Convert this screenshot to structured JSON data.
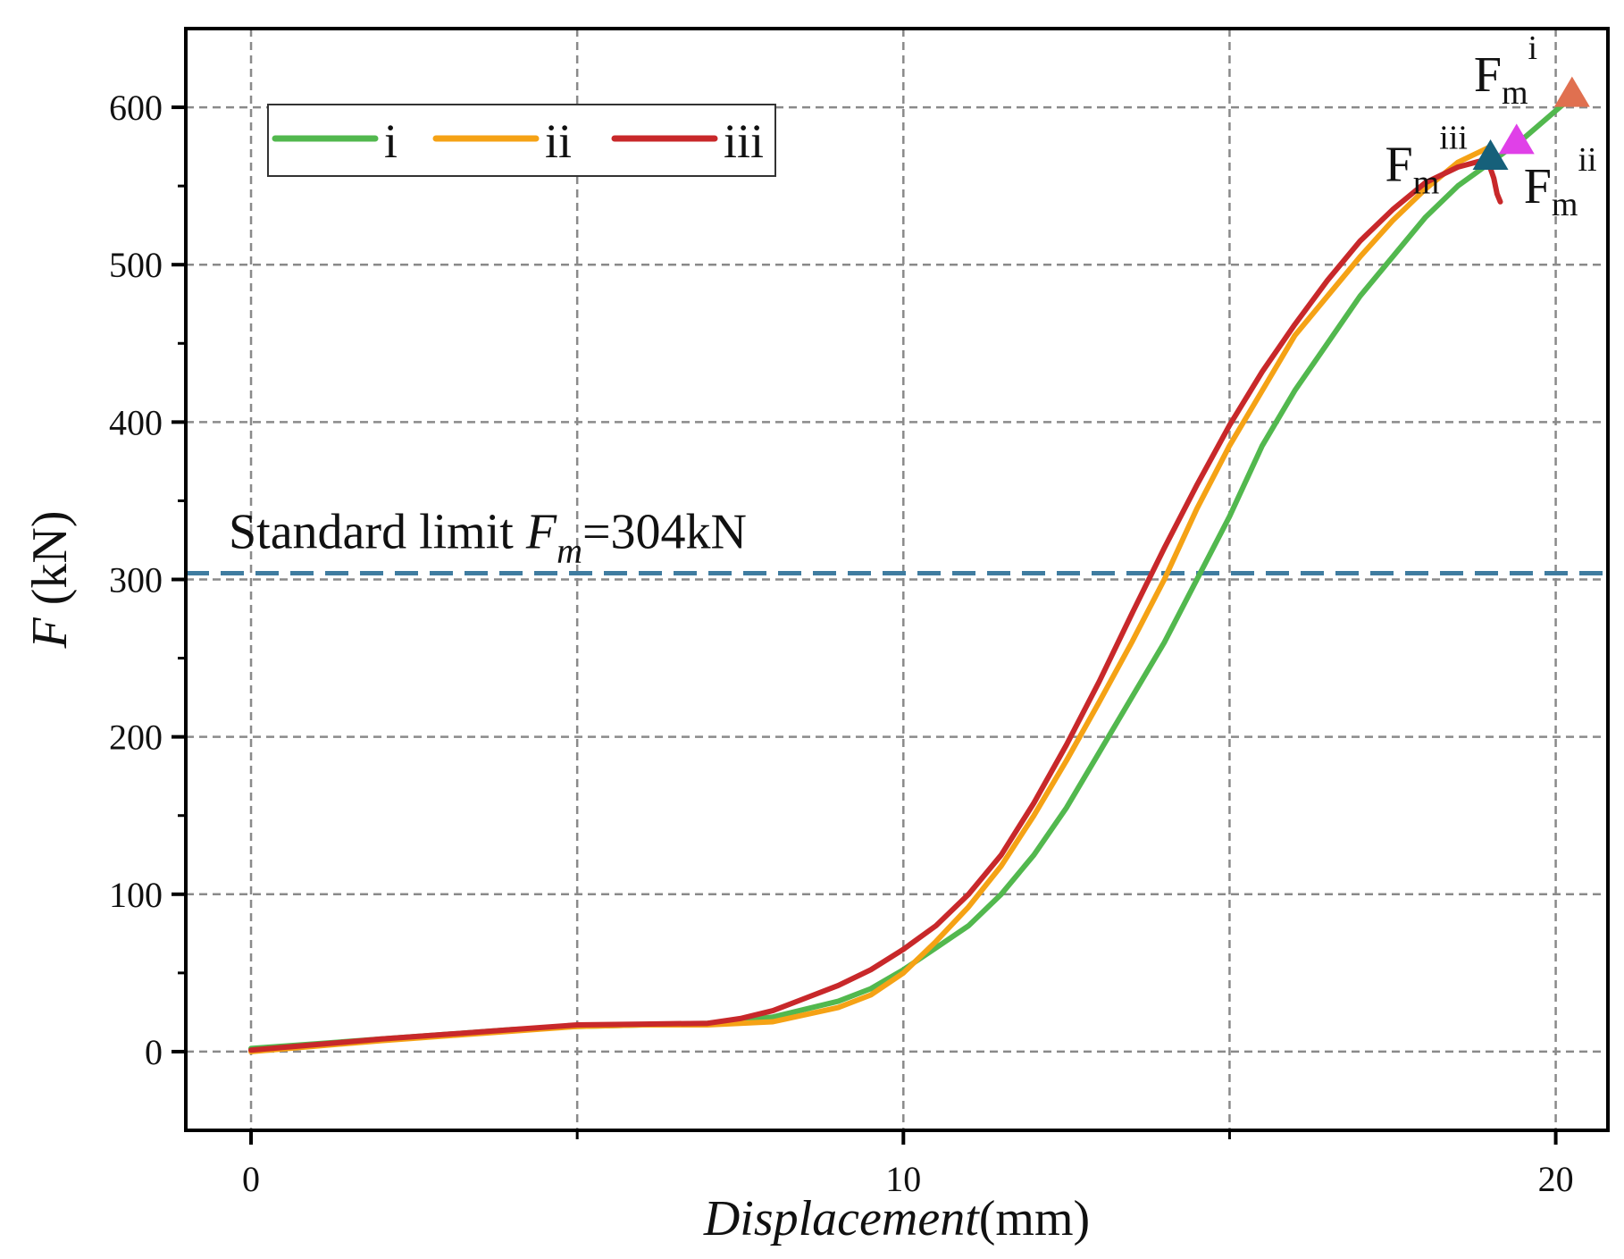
{
  "chart_data": {
    "type": "line",
    "xlabel_italic": "Displacement",
    "xlabel_unit": "(mm)",
    "ylabel_italic": "F",
    "ylabel_unit": " (kN)",
    "xlim": [
      -1,
      20.8
    ],
    "ylim": [
      -50,
      650
    ],
    "xticks": [
      0,
      10,
      20
    ],
    "yticks": [
      0,
      100,
      200,
      300,
      400,
      500,
      600
    ],
    "x_grid": [
      0,
      5,
      10,
      15,
      20
    ],
    "y_grid": [
      0,
      100,
      200,
      300,
      400,
      500,
      600
    ],
    "y_minor_ticks": [
      50,
      150,
      250,
      350,
      450,
      550
    ],
    "series": [
      {
        "name": "i",
        "color": "#52b84e",
        "x": [
          0,
          2,
          4,
          5,
          6,
          7,
          8,
          9,
          9.5,
          10,
          10.5,
          11,
          11.5,
          12,
          12.5,
          13,
          13.5,
          14,
          14.5,
          15,
          15.5,
          16,
          16.5,
          17,
          17.5,
          18,
          18.5,
          19,
          19.5,
          20.2
        ],
        "y": [
          2,
          8,
          14,
          16,
          17,
          18,
          22,
          32,
          40,
          52,
          66,
          80,
          100,
          125,
          155,
          190,
          225,
          260,
          300,
          340,
          385,
          420,
          450,
          480,
          505,
          530,
          550,
          565,
          580,
          605
        ]
      },
      {
        "name": "ii",
        "color": "#f5a215",
        "x": [
          0,
          2,
          4,
          5,
          6,
          7,
          8,
          9,
          9.5,
          10,
          10.5,
          11,
          11.5,
          12,
          12.5,
          13,
          13.5,
          14,
          14.5,
          15,
          15.5,
          16,
          16.5,
          17,
          17.5,
          18,
          18.5,
          19
        ],
        "y": [
          0,
          7,
          13,
          16,
          17,
          17,
          19,
          28,
          36,
          50,
          70,
          92,
          118,
          150,
          185,
          222,
          260,
          300,
          345,
          385,
          420,
          455,
          480,
          505,
          528,
          548,
          565,
          575
        ]
      },
      {
        "name": "iii",
        "color": "#c8282a",
        "x": [
          0,
          2,
          4,
          5,
          6,
          7,
          7.5,
          8,
          8.5,
          9,
          9.5,
          10,
          10.5,
          11,
          11.5,
          12,
          12.5,
          13,
          13.5,
          14,
          14.5,
          15,
          15.5,
          16,
          16.5,
          17,
          17.5,
          18,
          18.5,
          18.95,
          19.05,
          19.1,
          19.15
        ],
        "y": [
          1,
          8,
          14,
          17,
          17.5,
          18,
          21,
          26,
          34,
          42,
          52,
          65,
          80,
          100,
          125,
          158,
          195,
          235,
          278,
          320,
          360,
          398,
          432,
          462,
          490,
          515,
          535,
          552,
          562,
          567,
          555,
          545,
          540
        ]
      }
    ],
    "markers": [
      {
        "name": "Fm_i",
        "x": 20.25,
        "y": 608,
        "color": "#e07050",
        "label": "F",
        "sub": "m",
        "sup": "i",
        "anchor": "left"
      },
      {
        "name": "Fm_ii",
        "x": 19.4,
        "y": 578,
        "color": "#e040e8",
        "label": "F",
        "sub": "m",
        "sup": "ii",
        "anchor": "right"
      },
      {
        "name": "Fm_iii",
        "x": 19.0,
        "y": 568,
        "color": "#16607a",
        "label": "F",
        "sub": "m",
        "sup": "iii",
        "anchor": "left"
      }
    ],
    "reference_line": {
      "y": 304,
      "color": "#3f7ca0",
      "label_prefix": "Standard  limit ",
      "label_var": "F",
      "label_sub": "m",
      "label_value": "=304kN"
    },
    "legend": {
      "position": "top-left",
      "entries": [
        "i",
        "ii",
        "iii"
      ]
    }
  }
}
